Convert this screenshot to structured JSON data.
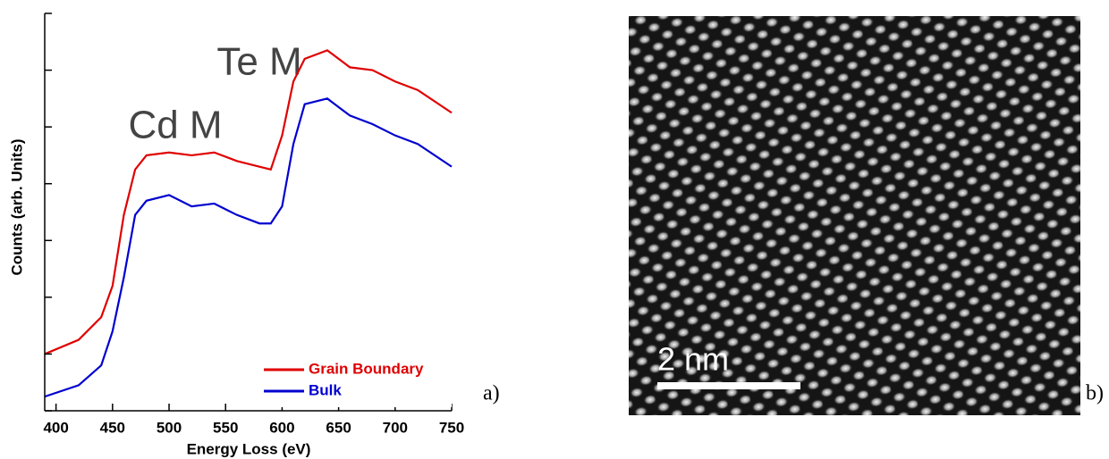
{
  "chart_data": {
    "type": "line",
    "xlabel": "Energy Loss (eV)",
    "ylabel": "Counts (arb. Units)",
    "xlim": [
      390,
      750
    ],
    "xticks": [
      400,
      450,
      500,
      550,
      600,
      650,
      700,
      750
    ],
    "ylim": [
      0,
      7
    ],
    "yticks": [
      0,
      1,
      2,
      3,
      4,
      5,
      6,
      7
    ],
    "annotations": [
      "Te M",
      "Cd M"
    ],
    "panel_label": "a)",
    "x": [
      390,
      420,
      440,
      450,
      460,
      470,
      480,
      500,
      520,
      540,
      560,
      580,
      590,
      600,
      610,
      620,
      640,
      660,
      680,
      700,
      720,
      750
    ],
    "series": [
      {
        "name": "Grain Boundary",
        "color": "#e00000",
        "values": [
          1.0,
          1.25,
          1.65,
          2.2,
          3.45,
          4.25,
          4.5,
          4.55,
          4.5,
          4.55,
          4.4,
          4.3,
          4.25,
          4.85,
          5.8,
          6.2,
          6.35,
          6.05,
          6.0,
          5.8,
          5.65,
          5.25
        ]
      },
      {
        "name": "Bulk",
        "color": "#0000d0",
        "values": [
          0.25,
          0.45,
          0.8,
          1.4,
          2.35,
          3.45,
          3.7,
          3.8,
          3.6,
          3.65,
          3.45,
          3.3,
          3.3,
          3.6,
          4.7,
          5.4,
          5.5,
          5.2,
          5.05,
          4.85,
          4.7,
          4.3
        ]
      }
    ]
  },
  "image": {
    "scale_label": "2 nm",
    "panel_label": "b)"
  }
}
